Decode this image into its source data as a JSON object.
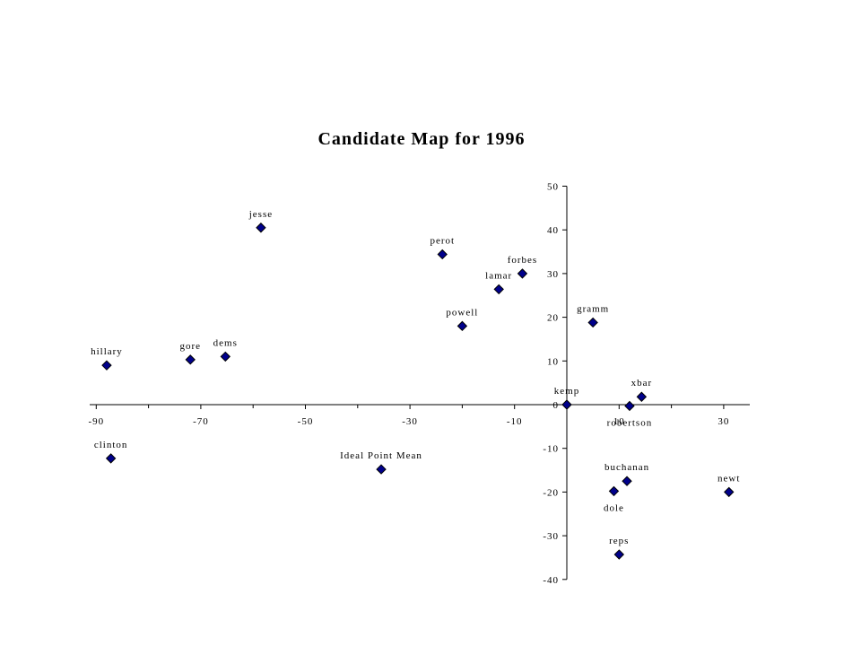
{
  "chart_data": {
    "type": "scatter",
    "title": "Candidate Map for 1996",
    "xlabel": "",
    "ylabel": "",
    "xlim": [
      -90,
      35
    ],
    "ylim": [
      -40,
      50
    ],
    "x_ticks": [
      -90,
      -70,
      -50,
      -30,
      -10,
      10,
      30
    ],
    "y_ticks": [
      50,
      40,
      30,
      20,
      10,
      0,
      -10,
      -20,
      -30,
      -40
    ],
    "grid": false,
    "legend": "none",
    "marker_color": "#00008B",
    "points": [
      {
        "label": "jesse",
        "x": -58.5,
        "y": 40.5,
        "label_pos": "above"
      },
      {
        "label": "hillary",
        "x": -88,
        "y": 9,
        "label_pos": "above"
      },
      {
        "label": "gore",
        "x": -72,
        "y": 10.3,
        "label_pos": "above"
      },
      {
        "label": "dems",
        "x": -65.3,
        "y": 11,
        "label_pos": "above"
      },
      {
        "label": "clinton",
        "x": -87.2,
        "y": -12.3,
        "label_pos": "above"
      },
      {
        "label": "Ideal Point Mean",
        "x": -35.5,
        "y": -14.8,
        "label_pos": "above"
      },
      {
        "label": "perot",
        "x": -23.8,
        "y": 34.4,
        "label_pos": "above"
      },
      {
        "label": "powell",
        "x": -20,
        "y": 18,
        "label_pos": "above"
      },
      {
        "label": "lamar",
        "x": -13,
        "y": 26.4,
        "label_pos": "above"
      },
      {
        "label": "forbes",
        "x": -8.5,
        "y": 30,
        "label_pos": "above"
      },
      {
        "label": "kemp",
        "x": 0,
        "y": 0,
        "label_pos": "above"
      },
      {
        "label": "gramm",
        "x": 5,
        "y": 18.8,
        "label_pos": "above"
      },
      {
        "label": "xbar",
        "x": 14.3,
        "y": 1.8,
        "label_pos": "above"
      },
      {
        "label": "robertson",
        "x": 12,
        "y": -0.3,
        "label_pos": "below"
      },
      {
        "label": "buchanan",
        "x": 11.5,
        "y": -17.5,
        "label_pos": "above"
      },
      {
        "label": "dole",
        "x": 9,
        "y": -19.8,
        "label_pos": "below"
      },
      {
        "label": "newt",
        "x": 31,
        "y": -20,
        "label_pos": "above"
      },
      {
        "label": "reps",
        "x": 10,
        "y": -34.3,
        "label_pos": "above"
      }
    ]
  }
}
